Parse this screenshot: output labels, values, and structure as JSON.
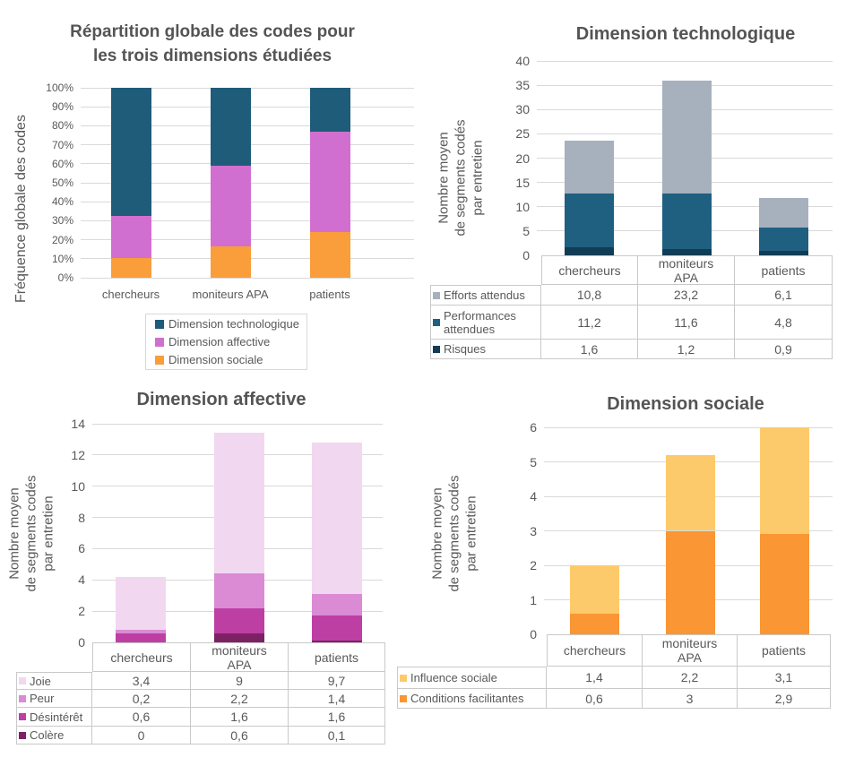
{
  "chart_data": [
    {
      "id": "repartition-globale",
      "type": "bar",
      "stacked": true,
      "unit": "percent",
      "title": "Répartition globale des codes pour\nles trois dimensions étudiées",
      "ylabel": "Fréquence globale des codes",
      "categories": [
        "chercheurs",
        "moniteurs APA",
        "patients"
      ],
      "ylim": [
        0,
        100
      ],
      "ystep": 10,
      "tick_suffix": "%",
      "grid": true,
      "legend_position": "bottom",
      "series": [
        {
          "name": "Dimension technologique",
          "color": "#1E5C7A",
          "values": [
            67.5,
            41,
            23
          ]
        },
        {
          "name": "Dimension affective",
          "color": "#D16FD0",
          "values": [
            22,
            42.5,
            53
          ]
        },
        {
          "name": "Dimension sociale",
          "color": "#FA9D3B",
          "values": [
            10.5,
            16.5,
            24
          ]
        }
      ]
    },
    {
      "id": "dimension-technologique",
      "type": "bar",
      "stacked": true,
      "title": "Dimension technologique",
      "ylabel": "Nombre moyen\nde segments codés\npar entretien",
      "categories": [
        "chercheurs",
        "moniteurs APA",
        "patients"
      ],
      "ylim": [
        0,
        40
      ],
      "ystep": 5,
      "tick_suffix": "",
      "grid": true,
      "legend_position": "table-left",
      "series": [
        {
          "name": "Efforts attendus",
          "color": "#A6B1BD",
          "values": [
            10.8,
            23.2,
            6.1
          ]
        },
        {
          "name": "Performances attendues",
          "color": "#1F5F80",
          "values": [
            11.2,
            11.6,
            4.8
          ]
        },
        {
          "name": "Risques",
          "color": "#123C54",
          "values": [
            1.6,
            1.2,
            0.9
          ]
        }
      ]
    },
    {
      "id": "dimension-affective",
      "type": "bar",
      "stacked": true,
      "title": "Dimension affective",
      "ylabel": "Nombre moyen\nde segments codés\npar entretien",
      "categories": [
        "chercheurs",
        "moniteurs APA",
        "patients"
      ],
      "ylim": [
        0,
        14
      ],
      "ystep": 2,
      "tick_suffix": "",
      "grid": true,
      "legend_position": "table-left",
      "series": [
        {
          "name": "Joie",
          "color": "#F2D7F0",
          "values": [
            3.4,
            9,
            9.7
          ]
        },
        {
          "name": "Peur",
          "color": "#DA8BD4",
          "values": [
            0.2,
            2.2,
            1.4
          ]
        },
        {
          "name": "Désintérêt",
          "color": "#BE3FA4",
          "values": [
            0.6,
            1.6,
            1.6
          ]
        },
        {
          "name": "Colère",
          "color": "#7C2264",
          "values": [
            0,
            0.6,
            0.1
          ]
        }
      ]
    },
    {
      "id": "dimension-sociale",
      "type": "bar",
      "stacked": true,
      "title": "Dimension sociale",
      "ylabel": "Nombre moyen\nde segments codés\npar entretien",
      "categories": [
        "chercheurs",
        "moniteurs APA",
        "patients"
      ],
      "ylim": [
        0,
        6
      ],
      "ystep": 1,
      "tick_suffix": "",
      "grid": true,
      "legend_position": "table-left",
      "series": [
        {
          "name": "Influence sociale",
          "color": "#FDCA6B",
          "values": [
            1.4,
            2.2,
            3.1
          ]
        },
        {
          "name": "Conditions facilitantes",
          "color": "#FA9633",
          "values": [
            0.6,
            3,
            2.9
          ]
        }
      ]
    }
  ]
}
